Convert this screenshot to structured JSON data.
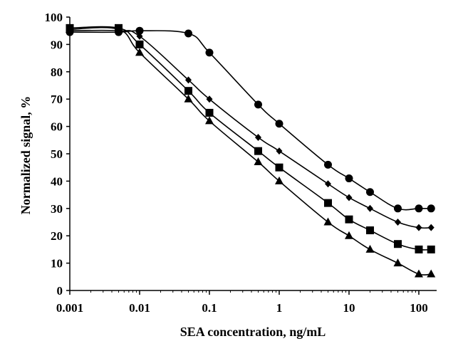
{
  "chart_data": {
    "type": "scatter",
    "title": "",
    "xlabel": "SEA concentration, ng/mL",
    "ylabel": "Normalized signal, %",
    "xscale": "log",
    "xlim": [
      0.001,
      180
    ],
    "ylim": [
      0,
      100
    ],
    "xticks": [
      0.001,
      0.01,
      0.1,
      1,
      10,
      100
    ],
    "xtick_labels": [
      "0.001",
      "0.01",
      "0.1",
      "1",
      "10",
      "100"
    ],
    "yticks": [
      0,
      10,
      20,
      30,
      40,
      50,
      60,
      70,
      80,
      90,
      100
    ],
    "ytick_labels": [
      "0",
      "10",
      "20",
      "30",
      "40",
      "50",
      "60",
      "70",
      "80",
      "90",
      "100"
    ],
    "grid": false,
    "line_style": "smooth",
    "series": [
      {
        "marker": "circle",
        "color": "#000000",
        "x": [
          0.001,
          0.005,
          0.01,
          0.05,
          0.1,
          0.5,
          1,
          5,
          10,
          20,
          50,
          100,
          150
        ],
        "y": [
          94.5,
          94.5,
          95,
          94,
          87,
          68,
          61,
          46,
          41,
          36,
          30,
          30,
          30
        ]
      },
      {
        "marker": "diamond",
        "color": "#000000",
        "x": [
          0.001,
          0.005,
          0.01,
          0.05,
          0.1,
          0.5,
          1,
          5,
          10,
          20,
          50,
          100,
          150
        ],
        "y": [
          95,
          95,
          93,
          77,
          70,
          56,
          51,
          39,
          34,
          30,
          25,
          23,
          23
        ]
      },
      {
        "marker": "square",
        "color": "#000000",
        "x": [
          0.001,
          0.005,
          0.01,
          0.05,
          0.1,
          0.5,
          1,
          5,
          10,
          20,
          50,
          100,
          150
        ],
        "y": [
          96,
          96,
          90,
          73,
          65,
          51,
          45,
          32,
          26,
          22,
          17,
          15,
          15
        ]
      },
      {
        "marker": "triangle",
        "color": "#000000",
        "x": [
          0.001,
          0.005,
          0.01,
          0.05,
          0.1,
          0.5,
          1,
          5,
          10,
          20,
          50,
          100,
          150
        ],
        "y": [
          95.5,
          95.5,
          87,
          70,
          62,
          47,
          40,
          25,
          20,
          15,
          10,
          6,
          6
        ]
      }
    ]
  }
}
